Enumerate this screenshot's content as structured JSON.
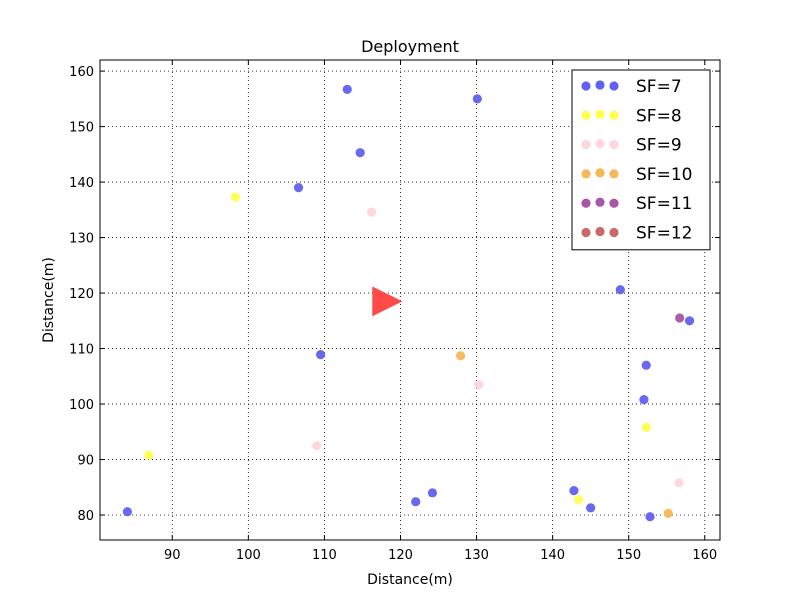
{
  "chart_data": {
    "type": "scatter",
    "title": "Deployment",
    "xlabel": "Distance(m)",
    "ylabel": "Distance(m)",
    "xlim": [
      80.5,
      162
    ],
    "ylim": [
      75.5,
      162
    ],
    "xticks": [
      90,
      100,
      110,
      120,
      130,
      140,
      150,
      160
    ],
    "yticks": [
      80,
      90,
      100,
      110,
      120,
      130,
      140,
      150,
      160
    ],
    "grid": true,
    "legend_position": "top-right",
    "gateway": {
      "x": 118,
      "y": 118.5,
      "color": "#ff4040",
      "marker": "triangle-right"
    },
    "series": [
      {
        "name": "SF=7",
        "color": "#6060f0",
        "points": [
          [
            113,
            156.7
          ],
          [
            130.1,
            155
          ],
          [
            114.7,
            145.3
          ],
          [
            106.6,
            139
          ],
          [
            148.9,
            120.6
          ],
          [
            158,
            115
          ],
          [
            109.5,
            108.9
          ],
          [
            152.3,
            107
          ],
          [
            152,
            100.8
          ],
          [
            84.1,
            80.6
          ],
          [
            122,
            82.4
          ],
          [
            124.2,
            84
          ],
          [
            142.8,
            84.4
          ],
          [
            145,
            81.3
          ],
          [
            152.8,
            79.7
          ]
        ]
      },
      {
        "name": "SF=8",
        "color": "#ffff50",
        "points": [
          [
            98.3,
            137.3
          ],
          [
            86.9,
            90.8
          ],
          [
            152.3,
            95.8
          ],
          [
            143.4,
            82.8
          ]
        ]
      },
      {
        "name": "SF=9",
        "color": "#ffd6dc",
        "points": [
          [
            116.2,
            134.6
          ],
          [
            130.3,
            103.5
          ],
          [
            109,
            92.5
          ],
          [
            156.6,
            85.8
          ]
        ]
      },
      {
        "name": "SF=10",
        "color": "#f5b85a",
        "points": [
          [
            127.9,
            108.7
          ],
          [
            155.2,
            80.3
          ]
        ]
      },
      {
        "name": "SF=11",
        "color": "#a855a8",
        "points": [
          [
            156.7,
            115.5
          ]
        ]
      },
      {
        "name": "SF=12",
        "color": "#c86a6a",
        "points": []
      }
    ]
  }
}
